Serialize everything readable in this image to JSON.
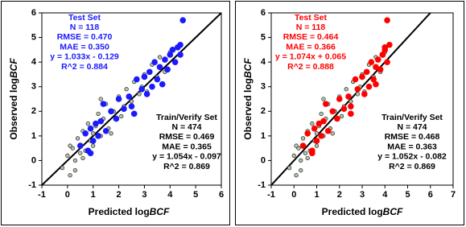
{
  "chart_data": [
    {
      "type": "scatter",
      "xlabel": [
        "Predicted log",
        "BCF"
      ],
      "ylabel": [
        "Observed log",
        "BCF"
      ],
      "xlim": [
        -1,
        6
      ],
      "ylim": [
        -1,
        6
      ],
      "xticks": [
        -1,
        0,
        1,
        2,
        3,
        4,
        5,
        6
      ],
      "yticks": [
        -1,
        0,
        1,
        2,
        3,
        4,
        5,
        6
      ],
      "series": [
        {
          "color": "#b4c4ac",
          "x": [
            -0.2,
            0.0,
            0.1,
            0.2,
            0.3,
            0.4,
            0.5,
            0.6,
            0.7,
            0.8,
            0.9,
            1.0,
            1.1,
            1.2,
            1.3,
            1.4,
            1.5,
            1.6,
            1.8,
            2.0,
            2.1,
            2.3,
            2.5,
            2.6,
            2.8,
            3.0,
            3.1,
            3.3,
            3.5,
            3.6,
            3.8,
            4.0,
            0.3,
            0.6,
            1.0,
            1.7,
            2.2,
            2.9,
            0.1,
            1.3
          ],
          "values": [
            -0.3,
            0.2,
            -0.6,
            0.5,
            0.0,
            0.9,
            0.3,
            1.2,
            0.4,
            1.5,
            0.8,
            0.6,
            1.4,
            1.9,
            1.0,
            1.7,
            2.3,
            1.3,
            2.0,
            2.6,
            1.8,
            2.9,
            2.4,
            3.2,
            2.7,
            3.5,
            2.8,
            3.9,
            3.4,
            4.2,
            3.6,
            4.4,
            -0.4,
            0.1,
            1.1,
            1.1,
            2.2,
            3.0,
            0.6,
            2.5
          ]
        },
        {
          "color": "#1a1aff",
          "x": [
            0.5,
            0.7,
            0.8,
            0.9,
            1.0,
            1.1,
            1.2,
            1.3,
            1.5,
            1.7,
            1.9,
            2.0,
            2.2,
            2.4,
            2.5,
            2.7,
            2.9,
            3.0,
            3.1,
            3.2,
            3.3,
            3.4,
            3.5,
            3.6,
            3.8,
            3.9,
            4.0,
            4.1,
            4.2,
            4.3,
            4.4,
            4.5,
            0.9,
            1.4,
            2.6,
            3.7,
            4.4
          ],
          "values": [
            0.6,
            1.1,
            0.4,
            1.3,
            0.8,
            1.5,
            1.0,
            1.6,
            1.2,
            2.0,
            1.7,
            2.5,
            2.1,
            2.6,
            2.2,
            3.3,
            2.9,
            3.4,
            2.7,
            3.6,
            3.0,
            4.0,
            3.3,
            3.8,
            4.1,
            3.7,
            4.3,
            4.5,
            4.0,
            4.6,
            4.3,
            5.7,
            0.3,
            2.3,
            1.9,
            3.1,
            4.7
          ]
        }
      ],
      "annotations": [
        {
          "color": "#1a1aff",
          "lines": [
            "Test Set",
            "N = 118",
            "RMSE = 0.470",
            "MAE = 0.350",
            "y = 1.033x - 0.129",
            "R^2 = 0.884"
          ]
        },
        {
          "color": "#000000",
          "lines": [
            "Train/Verify Set",
            "N = 474",
            "RMSE = 0.469",
            "MAE = 0.365",
            "y = 1.054x - 0.097",
            "R^2 = 0.869"
          ]
        }
      ]
    },
    {
      "type": "scatter",
      "xlabel": [
        "Predicted log",
        "BCF"
      ],
      "ylabel": [
        "Observed log",
        "BCF"
      ],
      "xlim": [
        -1,
        7
      ],
      "ylim": [
        -1,
        6
      ],
      "xticks": [
        -1,
        0,
        1,
        2,
        3,
        4,
        5,
        6,
        7
      ],
      "yticks": [
        -1,
        0,
        1,
        2,
        3,
        4,
        5,
        6
      ],
      "series": [
        {
          "color": "#b4c4ac",
          "x": [
            -0.2,
            0.0,
            0.1,
            0.2,
            0.3,
            0.4,
            0.5,
            0.6,
            0.7,
            0.8,
            0.9,
            1.0,
            1.1,
            1.2,
            1.3,
            1.4,
            1.5,
            1.6,
            1.8,
            2.0,
            2.1,
            2.3,
            2.5,
            2.6,
            2.8,
            3.0,
            3.1,
            3.3,
            3.5,
            3.6,
            3.8,
            4.0,
            0.3,
            0.6,
            1.0,
            1.7,
            2.2,
            2.9,
            0.1,
            1.3
          ],
          "values": [
            -0.3,
            0.2,
            -0.6,
            0.5,
            0.0,
            0.9,
            0.3,
            1.2,
            0.4,
            1.5,
            0.8,
            0.6,
            1.4,
            1.9,
            1.0,
            1.7,
            2.3,
            1.3,
            2.0,
            2.6,
            1.8,
            2.9,
            2.4,
            3.2,
            2.7,
            3.5,
            2.8,
            3.9,
            3.4,
            4.2,
            3.6,
            4.4,
            -0.4,
            0.1,
            1.1,
            1.1,
            2.2,
            3.0,
            0.6,
            2.5
          ]
        },
        {
          "color": "#ff0000",
          "x": [
            0.4,
            0.6,
            0.8,
            0.9,
            1.0,
            1.1,
            1.2,
            1.3,
            1.5,
            1.7,
            1.9,
            2.0,
            2.2,
            2.4,
            2.5,
            2.7,
            2.8,
            3.0,
            3.1,
            3.2,
            3.3,
            3.4,
            3.5,
            3.6,
            3.7,
            3.8,
            3.9,
            4.0,
            4.1,
            4.0,
            3.9,
            4.1,
            0.8,
            1.4,
            2.5,
            3.6,
            4.2
          ],
          "values": [
            0.6,
            1.1,
            0.4,
            1.3,
            0.8,
            1.5,
            1.0,
            1.6,
            1.2,
            2.0,
            1.7,
            2.5,
            2.1,
            2.6,
            2.2,
            3.3,
            2.9,
            3.4,
            2.7,
            3.6,
            3.0,
            4.0,
            3.3,
            3.8,
            4.1,
            3.7,
            4.3,
            4.5,
            4.0,
            4.6,
            4.3,
            5.7,
            0.3,
            2.3,
            1.9,
            3.1,
            4.7
          ]
        }
      ],
      "annotations": [
        {
          "color": "#ff0000",
          "lines": [
            "Test Set",
            "N = 118",
            "RMSE = 0.464",
            "MAE = 0.366",
            "y = 1.074x + 0.065",
            "R^2 = 0.888"
          ]
        },
        {
          "color": "#000000",
          "lines": [
            "Train/Verify Set",
            "N = 474",
            "RMSE = 0.468",
            "MAE = 0.363",
            "y = 1.052x - 0.082",
            "R^2 = 0.869"
          ]
        }
      ]
    }
  ]
}
